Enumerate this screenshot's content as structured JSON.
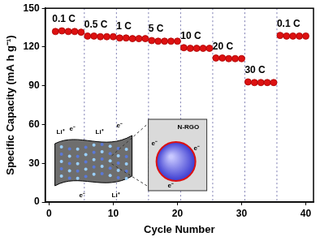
{
  "chart_data": {
    "type": "scatter",
    "x_label": "Cycle Number",
    "y_label": "Specific Capacity (mA h g⁻¹)",
    "segments": [
      {
        "label": "0.1 C",
        "x": [
          1,
          2,
          3,
          4,
          5
        ],
        "values": [
          132,
          132.5,
          132,
          132,
          131.5
        ]
      },
      {
        "label": "0.5 C",
        "x": [
          6,
          7,
          8,
          9,
          10
        ],
        "values": [
          128.5,
          128.5,
          128,
          128,
          128
        ]
      },
      {
        "label": "1 C",
        "x": [
          11,
          12,
          13,
          14,
          15
        ],
        "values": [
          127,
          127,
          126.5,
          126.5,
          126.5
        ]
      },
      {
        "label": "5 C",
        "x": [
          16,
          17,
          18,
          19,
          20
        ],
        "values": [
          125,
          124.5,
          124.5,
          124.5,
          124.5
        ]
      },
      {
        "label": "10 C",
        "x": [
          21,
          22,
          23,
          24,
          25
        ],
        "values": [
          119.5,
          119,
          119,
          119,
          119
        ]
      },
      {
        "label": "20 C",
        "x": [
          26,
          27,
          28,
          29,
          30
        ],
        "values": [
          111.5,
          111.5,
          111,
          111,
          111
        ]
      },
      {
        "label": "30 C",
        "x": [
          31,
          32,
          33,
          34,
          35
        ],
        "values": [
          93,
          92.5,
          92.5,
          92.5,
          92.5
        ]
      },
      {
        "label": "0.1 C",
        "x": [
          36,
          37,
          38,
          39,
          40
        ],
        "values": [
          129,
          128.5,
          128.5,
          128.5,
          128.5
        ]
      }
    ],
    "color": "#dd1111",
    "marker": "circle",
    "xlim": [
      -0.6,
      41.2
    ],
    "xticks": [
      0,
      10,
      20,
      30,
      40
    ],
    "ylim": [
      0,
      150
    ],
    "yticks": [
      0,
      30,
      60,
      90,
      120,
      150
    ],
    "grid": false,
    "inset": {
      "labels": [
        "Li⁺",
        "e⁻",
        "N-RGO"
      ]
    }
  }
}
